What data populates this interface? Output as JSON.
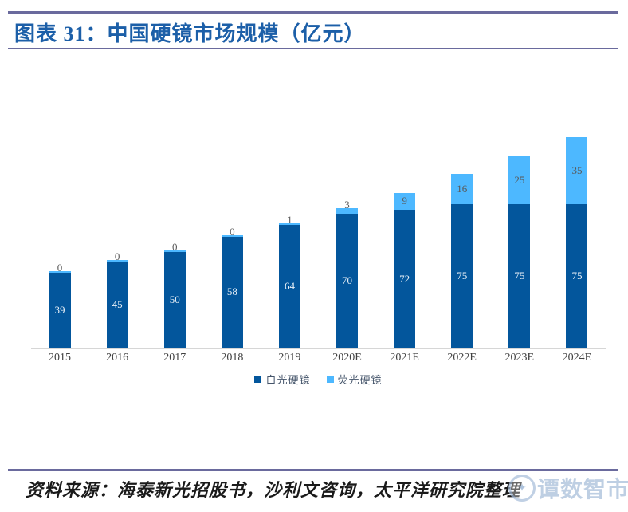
{
  "figure": {
    "title": "图表 31：中国硬镜市场规模（亿元）"
  },
  "chart_data": {
    "type": "bar",
    "stacked": true,
    "title": "中国硬镜市场规模（亿元）",
    "categories": [
      "2015",
      "2016",
      "2017",
      "2018",
      "2019",
      "2020E",
      "2021E",
      "2022E",
      "2023E",
      "2024E"
    ],
    "series": [
      {
        "name": "白光硬镜",
        "color": "#03569C",
        "label_color": "#E9F0F7",
        "values": [
          39,
          45,
          50,
          58,
          64,
          70,
          72,
          75,
          75,
          75
        ]
      },
      {
        "name": "荧光硬镜",
        "color": "#4DB8FF",
        "label_color": "#595959",
        "values": [
          0,
          0,
          0,
          0,
          1,
          3,
          9,
          16,
          25,
          35
        ]
      }
    ],
    "xlabel": "",
    "ylabel": "",
    "ylim": [
      0,
      112.5
    ],
    "grid": false,
    "legend_position": "bottom",
    "data_labels": true
  },
  "footer": {
    "source": "资料来源：海泰新光招股书，沙利文咨询，太平洋研究院整理"
  },
  "watermark": {
    "logo_glyph": "✦",
    "text": "谭数智市"
  },
  "colors": {
    "rule": "#6A6A9D",
    "title": "#1C5FA8",
    "axis_line": "#D6D6D6",
    "tick_label": "#404040",
    "legend_text": "#44546A",
    "bar_dark": "#03569C",
    "bar_light": "#4DB8FF"
  }
}
